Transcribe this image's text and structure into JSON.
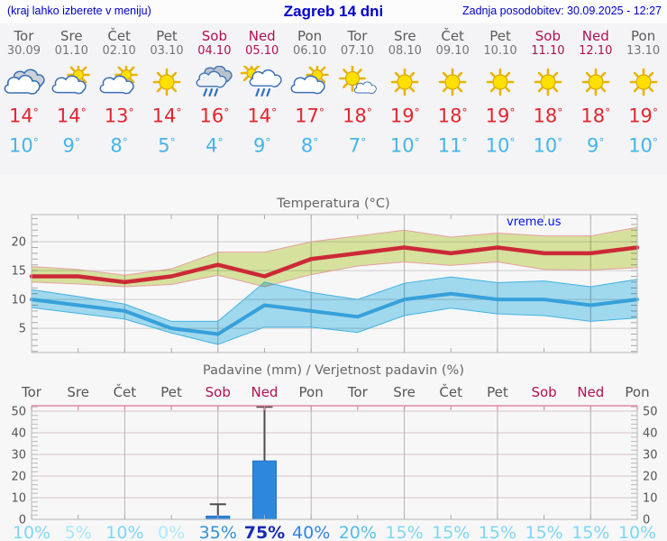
{
  "header": {
    "left_note": "(kraj lahko izberete v meniju)",
    "title": "Zagreb 14 dni",
    "updated": "Zadnja posodobitev: 30.09.2025 - 12:27"
  },
  "forecast": {
    "days": [
      {
        "name": "Tor",
        "date": "30.09",
        "weekend": false,
        "icon": "cloudy",
        "tmax": "14",
        "tmin": "10"
      },
      {
        "name": "Sre",
        "date": "01.10",
        "weekend": false,
        "icon": "partly-cloudy",
        "tmax": "14",
        "tmin": "9"
      },
      {
        "name": "Čet",
        "date": "02.10",
        "weekend": false,
        "icon": "partly-cloudy",
        "tmax": "13",
        "tmin": "8"
      },
      {
        "name": "Pet",
        "date": "03.10",
        "weekend": false,
        "icon": "sunny",
        "tmax": "14",
        "tmin": "5"
      },
      {
        "name": "Sob",
        "date": "04.10",
        "weekend": true,
        "icon": "rain",
        "tmax": "16",
        "tmin": "4"
      },
      {
        "name": "Ned",
        "date": "05.10",
        "weekend": true,
        "icon": "sun-rain",
        "tmax": "14",
        "tmin": "9"
      },
      {
        "name": "Pon",
        "date": "06.10",
        "weekend": false,
        "icon": "partly-cloudy",
        "tmax": "17",
        "tmin": "8"
      },
      {
        "name": "Tor",
        "date": "07.10",
        "weekend": false,
        "icon": "mostly-sunny",
        "tmax": "18",
        "tmin": "7"
      },
      {
        "name": "Sre",
        "date": "08.10",
        "weekend": false,
        "icon": "sunny",
        "tmax": "19",
        "tmin": "10"
      },
      {
        "name": "Čet",
        "date": "09.10",
        "weekend": false,
        "icon": "sunny",
        "tmax": "18",
        "tmin": "11"
      },
      {
        "name": "Pet",
        "date": "10.10",
        "weekend": false,
        "icon": "sunny",
        "tmax": "19",
        "tmin": "10"
      },
      {
        "name": "Sob",
        "date": "11.10",
        "weekend": true,
        "icon": "sunny",
        "tmax": "18",
        "tmin": "10"
      },
      {
        "name": "Ned",
        "date": "12.10",
        "weekend": true,
        "icon": "sunny",
        "tmax": "18",
        "tmin": "9"
      },
      {
        "name": "Pon",
        "date": "13.10",
        "weekend": false,
        "icon": "sunny",
        "tmax": "19",
        "tmin": "10"
      }
    ]
  },
  "chart_data": [
    {
      "type": "line",
      "title": "Temperatura (°C)",
      "watermark": "vreme.us",
      "categories": [
        "Tor",
        "Sre",
        "Čet",
        "Pet",
        "Sob",
        "Ned",
        "Pon",
        "Tor",
        "Sre",
        "Čet",
        "Pet",
        "Sob",
        "Ned",
        "Pon"
      ],
      "ylim": [
        0.8,
        24.7
      ],
      "yticks": [
        5,
        10,
        15,
        20
      ],
      "grid": true,
      "series": [
        {
          "name": "max-temp",
          "color": "#cc2936",
          "width": 4.5,
          "values": [
            14,
            14,
            13,
            14,
            16,
            14,
            17,
            18,
            19,
            18,
            19,
            18,
            18,
            19
          ]
        },
        {
          "name": "min-temp",
          "color": "#36a0da",
          "width": 4,
          "values": [
            10,
            9,
            8,
            5,
            4,
            9,
            8,
            7,
            10,
            11,
            10,
            10,
            9,
            10
          ]
        }
      ],
      "bands": [
        {
          "name": "max-range",
          "fill": "#dce9a2",
          "edge": "#e89f9f",
          "hi": [
            15.7,
            15.2,
            14.2,
            15.3,
            18.2,
            18.2,
            20,
            21,
            22,
            20.8,
            21.5,
            21,
            21,
            22.5
          ],
          "lo": [
            13,
            12.7,
            12.2,
            12.6,
            14.2,
            12.2,
            14.3,
            15.8,
            16.5,
            15.9,
            16.5,
            15.2,
            15.1,
            15.5
          ]
        },
        {
          "name": "min-range",
          "fill": "#a5dff4",
          "edge": "#41b2e2",
          "hi": [
            11.7,
            10.5,
            9.2,
            6.2,
            6.2,
            13,
            11.2,
            10,
            12.8,
            13.9,
            12.9,
            13.2,
            12.2,
            13.5
          ],
          "lo": [
            8.6,
            7.6,
            6.6,
            4.2,
            2.2,
            5.2,
            5.2,
            4.3,
            7.2,
            8.5,
            7.5,
            7.2,
            6.2,
            6.8
          ]
        }
      ]
    },
    {
      "type": "bar",
      "title": "Padavine (mm) / Verjetnost padavin (%)",
      "ylim": [
        0,
        52.5
      ],
      "yticks": [
        0,
        10,
        20,
        30,
        40,
        50
      ],
      "grid": true,
      "categories": [
        {
          "label": "Tor",
          "weekend": false
        },
        {
          "label": "Sre",
          "weekend": false
        },
        {
          "label": "Čet",
          "weekend": false
        },
        {
          "label": "Pet",
          "weekend": false
        },
        {
          "label": "Sob",
          "weekend": true
        },
        {
          "label": "Ned",
          "weekend": true
        },
        {
          "label": "Pon",
          "weekend": false
        },
        {
          "label": "Tor",
          "weekend": false
        },
        {
          "label": "Sre",
          "weekend": false
        },
        {
          "label": "Čet",
          "weekend": false
        },
        {
          "label": "Pet",
          "weekend": false
        },
        {
          "label": "Sob",
          "weekend": true
        },
        {
          "label": "Ned",
          "weekend": true
        },
        {
          "label": "Pon",
          "weekend": false
        }
      ],
      "precip_mm": [
        0,
        0,
        0,
        0,
        1.5,
        27,
        0,
        0,
        0,
        0,
        0,
        0,
        0,
        0
      ],
      "whiskers": [
        null,
        null,
        null,
        null,
        [
          0,
          7
        ],
        [
          3,
          52
        ],
        null,
        null,
        null,
        null,
        null,
        null,
        null,
        null
      ],
      "pop_percent": [
        10,
        5,
        10,
        0,
        35,
        75,
        40,
        20,
        15,
        15,
        15,
        15,
        15,
        10
      ],
      "pop_labels": [
        {
          "text": "10%",
          "color": "#7ed7f2",
          "bold": false
        },
        {
          "text": "5%",
          "color": "#a8e7f8",
          "bold": false
        },
        {
          "text": "10%",
          "color": "#7ed7f2",
          "bold": false
        },
        {
          "text": "0%",
          "color": "#aeeafa",
          "bold": false
        },
        {
          "text": "35%",
          "color": "#2f93d8",
          "bold": false
        },
        {
          "text": "75%",
          "color": "#1a2ab5",
          "bold": true
        },
        {
          "text": "40%",
          "color": "#2f84ea",
          "bold": false
        },
        {
          "text": "20%",
          "color": "#55bdec",
          "bold": false
        },
        {
          "text": "15%",
          "color": "#7ed7f2",
          "bold": false
        },
        {
          "text": "15%",
          "color": "#7ed7f2",
          "bold": false
        },
        {
          "text": "15%",
          "color": "#7ed7f2",
          "bold": false
        },
        {
          "text": "15%",
          "color": "#7ed7f2",
          "bold": false
        },
        {
          "text": "15%",
          "color": "#7ed7f2",
          "bold": false
        },
        {
          "text": "10%",
          "color": "#7ed7f2",
          "bold": false
        }
      ],
      "bar_color": "#2d87dd",
      "whisker_color": "#4d4d4d",
      "axis_accent_color": "#e287a0"
    }
  ],
  "colors": {
    "header_blue": "#0000cc",
    "weekend": "#b0104f",
    "tmax_red": "#e2262f",
    "tmin_blue": "#45b5ea",
    "grid_h": "#cdcdcd",
    "grid_v": "#b3b3b3",
    "axis_label": "#555555",
    "precip_grid_h": "#d9c2c8"
  }
}
